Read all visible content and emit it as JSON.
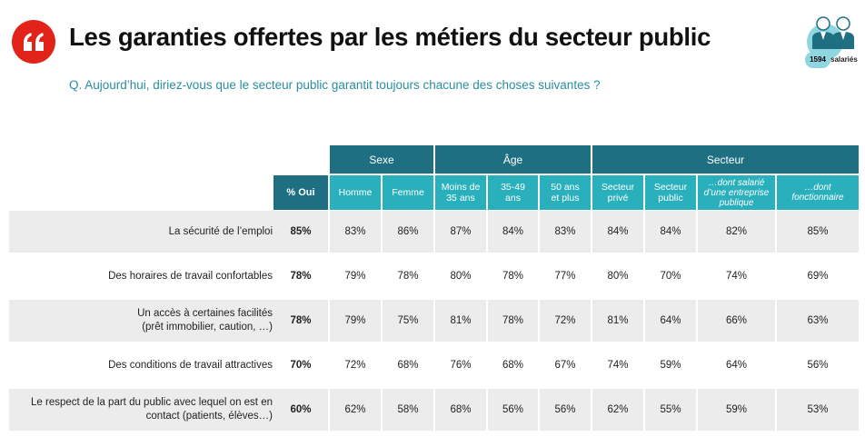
{
  "title": "Les garanties offertes par les métiers du secteur public",
  "question": "Q. Aujourd’hui, diriez-vous que le secteur public garantit toujours chacune des choses suivantes ?",
  "badge": {
    "count": "1594",
    "unit": "salariés",
    "icon": "people-icon"
  },
  "logo_icon": "quote-icon",
  "colors": {
    "logo": "#e2231a",
    "group_header": "#1f6f82",
    "sub_header": "#2ab0bd",
    "question": "#2a8ea0"
  },
  "table": {
    "groups": [
      "Sexe",
      "Âge",
      "Secteur"
    ],
    "pct_header": "% Oui",
    "subheaders": [
      [
        "Homme"
      ],
      [
        "Femme"
      ],
      [
        "Moins de",
        "35 ans"
      ],
      [
        "35-49",
        "ans"
      ],
      [
        "50 ans",
        "et plus"
      ],
      [
        "Secteur",
        "privé"
      ],
      [
        "Secteur",
        "public"
      ],
      [
        "…dont salarié",
        "d’une entreprise",
        "publique"
      ],
      [
        "…dont",
        "fonctionnaire"
      ]
    ],
    "rows": [
      {
        "label": [
          "La sécurité de l’emploi"
        ],
        "pct": "85%",
        "values": [
          "83%",
          "86%",
          "87%",
          "84%",
          "83%",
          "84%",
          "84%",
          "82%",
          "85%"
        ]
      },
      {
        "label": [
          "Des horaires de travail confortables"
        ],
        "pct": "78%",
        "values": [
          "79%",
          "78%",
          "80%",
          "78%",
          "77%",
          "80%",
          "70%",
          "74%",
          "69%"
        ]
      },
      {
        "label": [
          "Un accès à certaines facilités",
          "(prêt immobilier, caution, …)"
        ],
        "pct": "78%",
        "values": [
          "79%",
          "75%",
          "81%",
          "78%",
          "72%",
          "81%",
          "64%",
          "66%",
          "63%"
        ]
      },
      {
        "label": [
          "Des conditions de travail attractives"
        ],
        "pct": "70%",
        "values": [
          "72%",
          "68%",
          "76%",
          "68%",
          "67%",
          "74%",
          "59%",
          "64%",
          "56%"
        ]
      },
      {
        "label": [
          "Le respect de la part du public avec lequel on est en",
          "contact (patients, élèves…)"
        ],
        "pct": "60%",
        "values": [
          "62%",
          "58%",
          "68%",
          "56%",
          "56%",
          "62%",
          "55%",
          "59%",
          "53%"
        ]
      }
    ]
  }
}
